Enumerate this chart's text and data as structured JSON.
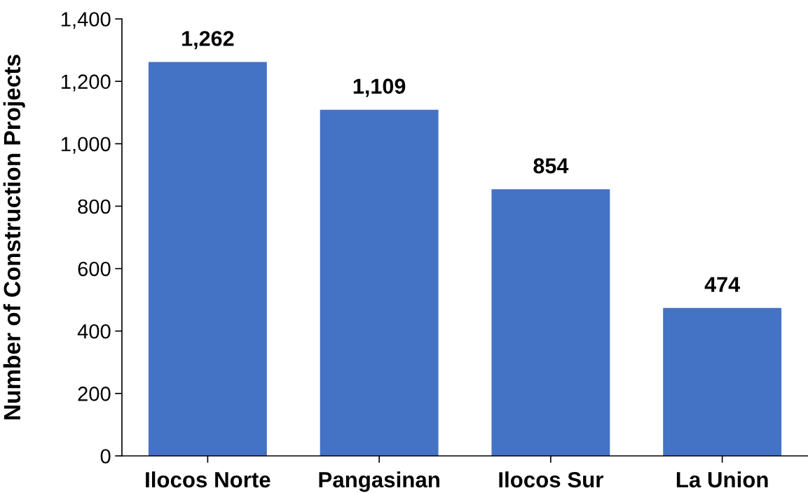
{
  "chart_data": {
    "type": "bar",
    "ylabel": "Number of Construction Projects",
    "categories": [
      "Ilocos Norte",
      "Pangasinan",
      "Ilocos Sur",
      "La Union"
    ],
    "values": [
      1262,
      1109,
      854,
      474
    ],
    "color": "#4472c4",
    "ylim": [
      0,
      1400
    ],
    "yticks": [
      {
        "value": 0,
        "label": "0"
      },
      {
        "value": 200,
        "label": "200"
      },
      {
        "value": 400,
        "label": "400"
      },
      {
        "value": 600,
        "label": "600"
      },
      {
        "value": 800,
        "label": "800"
      },
      {
        "value": 1000,
        "label": "1,000"
      },
      {
        "value": 1200,
        "label": "1,200"
      },
      {
        "value": 1400,
        "label": "1,400"
      }
    ],
    "value_labels": [
      "1,262",
      "1,109",
      "854",
      "474"
    ],
    "grid": false,
    "legend": false
  }
}
